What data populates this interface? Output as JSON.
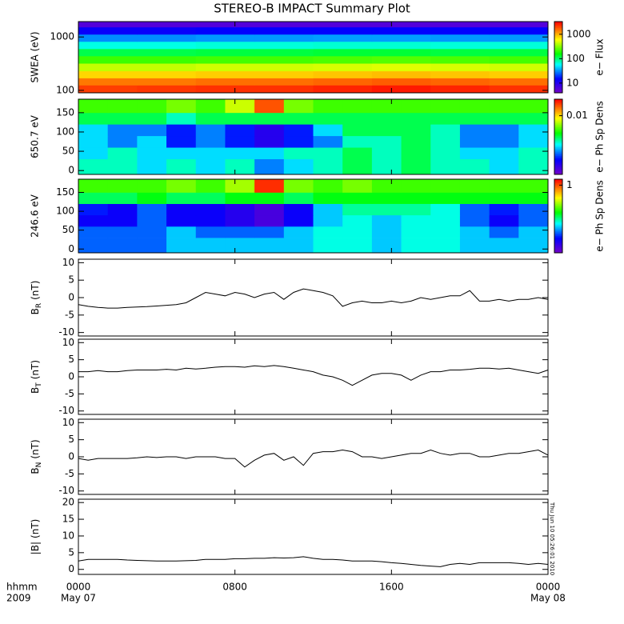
{
  "title": "STEREO-B IMPACT Summary Plot",
  "timestamp": "Thu Jun 10 05:26:01 2010",
  "x_axis": {
    "xlim": [
      0,
      24
    ],
    "xticks": [
      {
        "value": 0,
        "label": "0000"
      },
      {
        "value": 8,
        "label": "0800"
      },
      {
        "value": 16,
        "label": "1600"
      },
      {
        "value": 24,
        "label": "0000"
      }
    ],
    "dates": [
      {
        "value": 0,
        "label": "May 07"
      },
      {
        "value": 24,
        "label": "May 08"
      }
    ],
    "unit_label": "hhmm",
    "year": "2009"
  },
  "chart_data": [
    {
      "type": "heatmap",
      "ylabel": "SWEA (eV)",
      "ylog": true,
      "ylim": [
        90,
        1940
      ],
      "yticks": [
        100,
        1000
      ],
      "colorbar_label": "e− Flux",
      "zlog": true,
      "zlim": [
        4,
        3300
      ],
      "zticks": [
        10,
        100,
        1000
      ],
      "x_edges": [
        0,
        3,
        6,
        9,
        12,
        15,
        18,
        21,
        24
      ],
      "y_edges": [
        90,
        125,
        170,
        230,
        320,
        440,
        600,
        820,
        1120,
        1530,
        1940
      ],
      "values": [
        [
          2200,
          2300,
          2400,
          2400,
          2600,
          2800,
          2600,
          2400
        ],
        [
          1500,
          1500,
          1600,
          1600,
          1700,
          1800,
          1700,
          1600
        ],
        [
          800,
          800,
          850,
          850,
          900,
          950,
          900,
          850
        ],
        [
          450,
          450,
          480,
          480,
          500,
          520,
          500,
          480
        ],
        [
          220,
          220,
          230,
          230,
          240,
          250,
          240,
          230
        ],
        [
          120,
          120,
          125,
          125,
          130,
          130,
          125,
          125
        ],
        [
          65,
          65,
          68,
          68,
          70,
          70,
          68,
          68
        ],
        [
          32,
          32,
          34,
          34,
          35,
          35,
          34,
          34
        ],
        [
          14,
          14,
          15,
          15,
          15,
          15,
          15,
          15
        ],
        [
          6,
          6,
          6,
          6,
          6,
          6,
          6,
          6
        ]
      ]
    },
    {
      "type": "heatmap",
      "ylabel": "650.7 eV",
      "ylog": false,
      "ylim": [
        -10,
        185
      ],
      "yticks": [
        0,
        50,
        100,
        150
      ],
      "colorbar_label": "e− Ph Sp Dens",
      "zlog": true,
      "zlim": [
        0.0002,
        0.03
      ],
      "zticks": [
        0.01
      ],
      "x_edges": [
        0,
        1.5,
        3,
        4.5,
        6,
        7.5,
        9,
        10.5,
        12,
        13.5,
        15,
        16.5,
        18,
        19.5,
        21,
        22.5,
        24
      ],
      "y_edges": [
        -10,
        30,
        60,
        90,
        120,
        150,
        185
      ],
      "values": [
        [
          0.0018,
          0.0018,
          0.0013,
          0.0018,
          0.0013,
          0.0018,
          0.0009,
          0.0013,
          0.0018,
          0.0025,
          0.0018,
          0.0025,
          0.0018,
          0.0018,
          0.0013,
          0.0018
        ],
        [
          0.0013,
          0.0018,
          0.0013,
          0.0013,
          0.0013,
          0.0013,
          0.0013,
          0.0018,
          0.0018,
          0.0025,
          0.0018,
          0.0025,
          0.0018,
          0.0013,
          0.0013,
          0.0018
        ],
        [
          0.0013,
          0.0009,
          0.0013,
          0.0006,
          0.0009,
          0.0006,
          0.0004,
          0.0006,
          0.0009,
          0.0018,
          0.0018,
          0.0025,
          0.0018,
          0.0009,
          0.0009,
          0.0013
        ],
        [
          0.0013,
          0.0009,
          0.0009,
          0.0006,
          0.0009,
          0.0006,
          0.0004,
          0.0006,
          0.0013,
          0.0025,
          0.0025,
          0.0025,
          0.0018,
          0.0009,
          0.0009,
          0.0013
        ],
        [
          0.0025,
          0.0025,
          0.0025,
          0.0018,
          0.0025,
          0.0025,
          0.0025,
          0.0025,
          0.0025,
          0.0025,
          0.0025,
          0.0025,
          0.0025,
          0.0025,
          0.0025,
          0.0025
        ],
        [
          0.004,
          0.004,
          0.004,
          0.005,
          0.004,
          0.007,
          0.02,
          0.005,
          0.004,
          0.004,
          0.004,
          0.004,
          0.004,
          0.004,
          0.004,
          0.004
        ]
      ]
    },
    {
      "type": "heatmap",
      "ylabel": "246.6 eV",
      "ylog": false,
      "ylim": [
        -10,
        185
      ],
      "yticks": [
        0,
        50,
        100,
        150
      ],
      "colorbar_label": "e− Ph Sp Dens",
      "zlog": true,
      "zlim": [
        0.01,
        1.5
      ],
      "zticks": [
        1
      ],
      "x_edges": [
        0,
        1.5,
        3,
        4.5,
        6,
        7.5,
        9,
        10.5,
        12,
        13.5,
        15,
        16.5,
        18,
        19.5,
        21,
        22.5,
        24
      ],
      "y_edges": [
        -10,
        30,
        60,
        90,
        120,
        150,
        185
      ],
      "values": [
        [
          0.04,
          0.04,
          0.04,
          0.06,
          0.06,
          0.06,
          0.06,
          0.06,
          0.08,
          0.08,
          0.06,
          0.08,
          0.08,
          0.06,
          0.06,
          0.06
        ],
        [
          0.04,
          0.04,
          0.04,
          0.06,
          0.04,
          0.04,
          0.04,
          0.06,
          0.08,
          0.08,
          0.06,
          0.08,
          0.08,
          0.06,
          0.04,
          0.06
        ],
        [
          0.025,
          0.025,
          0.04,
          0.025,
          0.025,
          0.02,
          0.015,
          0.025,
          0.06,
          0.08,
          0.06,
          0.08,
          0.08,
          0.04,
          0.025,
          0.04
        ],
        [
          0.03,
          0.025,
          0.04,
          0.025,
          0.025,
          0.02,
          0.015,
          0.025,
          0.06,
          0.1,
          0.1,
          0.1,
          0.08,
          0.04,
          0.03,
          0.04
        ],
        [
          0.12,
          0.12,
          0.15,
          0.12,
          0.12,
          0.15,
          0.15,
          0.12,
          0.15,
          0.15,
          0.15,
          0.15,
          0.15,
          0.15,
          0.15,
          0.15
        ],
        [
          0.2,
          0.2,
          0.2,
          0.25,
          0.2,
          0.3,
          1.2,
          0.25,
          0.2,
          0.25,
          0.2,
          0.2,
          0.2,
          0.2,
          0.2,
          0.2
        ]
      ]
    },
    {
      "type": "line",
      "ylabel": {
        "base": "B",
        "sub": "R",
        "unit": "(nT)"
      },
      "ylim": [
        -11,
        11
      ],
      "yticks": [
        -10,
        -5,
        0,
        5,
        10
      ],
      "color": "#000000",
      "x": [
        0,
        0.5,
        1,
        1.5,
        2,
        2.5,
        3,
        3.5,
        4,
        4.5,
        5,
        5.5,
        6,
        6.5,
        7,
        7.5,
        8,
        8.5,
        9,
        9.5,
        10,
        10.5,
        11,
        11.5,
        12,
        12.5,
        13,
        13.5,
        14,
        14.5,
        15,
        15.5,
        16,
        16.5,
        17,
        17.5,
        18,
        18.5,
        19,
        19.5,
        20,
        20.5,
        21,
        21.5,
        22,
        22.5,
        23,
        23.5,
        24
      ],
      "values": [
        -2,
        -2.5,
        -2.8,
        -3,
        -3,
        -2.8,
        -2.7,
        -2.6,
        -2.4,
        -2.2,
        -2,
        -1.5,
        0,
        1.5,
        1,
        0.5,
        1.5,
        1,
        0,
        1,
        1.5,
        -0.5,
        1.5,
        2.5,
        2,
        1.5,
        0.5,
        -2.5,
        -1.5,
        -1,
        -1.5,
        -1.5,
        -1,
        -1.5,
        -1,
        0,
        -0.5,
        0,
        0.5,
        0.5,
        2,
        -1,
        -1,
        -0.5,
        -1,
        -0.5,
        -0.5,
        0,
        -0.5
      ]
    },
    {
      "type": "line",
      "ylabel": {
        "base": "B",
        "sub": "T",
        "unit": "(nT)"
      },
      "ylim": [
        -11,
        11
      ],
      "yticks": [
        -10,
        -5,
        0,
        5,
        10
      ],
      "color": "#000000",
      "x": [
        0,
        0.5,
        1,
        1.5,
        2,
        2.5,
        3,
        3.5,
        4,
        4.5,
        5,
        5.5,
        6,
        6.5,
        7,
        7.5,
        8,
        8.5,
        9,
        9.5,
        10,
        10.5,
        11,
        11.5,
        12,
        12.5,
        13,
        13.5,
        14,
        14.5,
        15,
        15.5,
        16,
        16.5,
        17,
        17.5,
        18,
        18.5,
        19,
        19.5,
        20,
        20.5,
        21,
        21.5,
        22,
        22.5,
        23,
        23.5,
        24
      ],
      "values": [
        1.5,
        1.5,
        1.8,
        1.5,
        1.5,
        1.8,
        2,
        2,
        2,
        2.2,
        2,
        2.5,
        2.3,
        2.5,
        2.8,
        3,
        3,
        2.8,
        3.2,
        3,
        3.3,
        3,
        2.5,
        2,
        1.5,
        0.5,
        0,
        -1,
        -2.5,
        -1,
        0.5,
        1,
        1,
        0.5,
        -1,
        0.5,
        1.5,
        1.5,
        2,
        2,
        2.2,
        2.5,
        2.5,
        2.3,
        2.5,
        2,
        1.5,
        1,
        2
      ]
    },
    {
      "type": "line",
      "ylabel": {
        "base": "B",
        "sub": "N",
        "unit": "(nT)"
      },
      "ylim": [
        -11,
        11
      ],
      "yticks": [
        -10,
        -5,
        0,
        5,
        10
      ],
      "color": "#000000",
      "x": [
        0,
        0.5,
        1,
        1.5,
        2,
        2.5,
        3,
        3.5,
        4,
        4.5,
        5,
        5.5,
        6,
        6.5,
        7,
        7.5,
        8,
        8.5,
        9,
        9.5,
        10,
        10.5,
        11,
        11.5,
        12,
        12.5,
        13,
        13.5,
        14,
        14.5,
        15,
        15.5,
        16,
        16.5,
        17,
        17.5,
        18,
        18.5,
        19,
        19.5,
        20,
        20.5,
        21,
        21.5,
        22,
        22.5,
        23,
        23.5,
        24
      ],
      "values": [
        -0.5,
        -1,
        -0.5,
        -0.5,
        -0.5,
        -0.5,
        -0.3,
        0,
        -0.2,
        0,
        0,
        -0.5,
        0,
        0,
        0,
        -0.5,
        -0.5,
        -3,
        -1,
        0.5,
        1,
        -1,
        0,
        -2.5,
        1,
        1.5,
        1.5,
        2,
        1.5,
        0,
        0,
        -0.5,
        0,
        0.5,
        1,
        1,
        2,
        1,
        0.5,
        1,
        1,
        0,
        0,
        0.5,
        1,
        1,
        1.5,
        2,
        0.5
      ]
    },
    {
      "type": "line",
      "ylabel": {
        "base": "|B|",
        "sub": "",
        "unit": "(nT)"
      },
      "ylim": [
        -1.5,
        21
      ],
      "yticks": [
        0,
        5,
        10,
        15,
        20
      ],
      "color": "#000000",
      "x": [
        0,
        0.5,
        1,
        1.5,
        2,
        2.5,
        3,
        3.5,
        4,
        4.5,
        5,
        5.5,
        6,
        6.5,
        7,
        7.5,
        8,
        8.5,
        9,
        9.5,
        10,
        10.5,
        11,
        11.5,
        12,
        12.5,
        13,
        13.5,
        14,
        14.5,
        15,
        15.5,
        16,
        16.5,
        17,
        17.5,
        18,
        18.5,
        19,
        19.5,
        20,
        20.5,
        21,
        21.5,
        22,
        22.5,
        23,
        23.5,
        24
      ],
      "values": [
        2.5,
        3,
        3,
        3,
        3,
        2.8,
        2.7,
        2.6,
        2.5,
        2.5,
        2.5,
        2.6,
        2.7,
        3,
        3,
        3,
        3.2,
        3.2,
        3.3,
        3.3,
        3.5,
        3.4,
        3.5,
        3.8,
        3.3,
        3,
        3,
        2.8,
        2.5,
        2.5,
        2.5,
        2.3,
        2,
        1.8,
        1.5,
        1.2,
        1,
        0.8,
        1.5,
        1.8,
        1.5,
        2,
        2,
        2,
        2,
        1.8,
        1.5,
        1.8,
        1.5
      ]
    }
  ]
}
